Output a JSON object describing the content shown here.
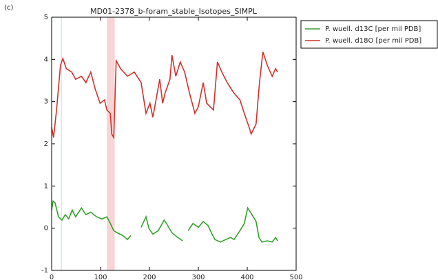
{
  "panel_label": "(c)",
  "chart_data": {
    "type": "line",
    "title": "MD01-2378_b-foram_stable_Isotopes_SIMPL",
    "xlim": [
      0,
      500
    ],
    "xticks": [
      0,
      100,
      200,
      300,
      400,
      500
    ],
    "ylim": [
      -1,
      5
    ],
    "yticks": [
      -1,
      0,
      1,
      2,
      3,
      4,
      5
    ],
    "legend": "outside-right",
    "spans": [
      {
        "xlim": [
          19,
          21
        ],
        "color": "#c6ecec"
      },
      {
        "xlim": [
          113,
          129
        ],
        "color": "#f9d4d4"
      }
    ],
    "series": [
      {
        "name": "P. wuell. d13C [per mil PDB]",
        "color": "#33a02c",
        "x": [
          0,
          3,
          7,
          14,
          21,
          28,
          35,
          42,
          49,
          61,
          70,
          80,
          92,
          103,
          113,
          120,
          127,
          134,
          145,
          155,
          162,
          170,
          183,
          193,
          199,
          207,
          218,
          230,
          235,
          246,
          258,
          268,
          273,
          279,
          289,
          300,
          310,
          320,
          328,
          334,
          345,
          356,
          366,
          373,
          385,
          394,
          401,
          408,
          418,
          424,
          430,
          441,
          451,
          458,
          462
        ],
        "values": [
          0.43,
          0.64,
          0.6,
          0.27,
          0.19,
          0.32,
          0.22,
          0.43,
          0.27,
          0.48,
          0.32,
          0.38,
          0.27,
          0.22,
          0.27,
          0.11,
          -0.06,
          -0.11,
          -0.17,
          -0.27,
          -0.17,
          null,
          0.02,
          0.27,
          -0.01,
          -0.14,
          -0.06,
          0.19,
          0.11,
          -0.11,
          -0.22,
          -0.3,
          null,
          -0.06,
          0.11,
          0.02,
          0.16,
          0.06,
          -0.14,
          -0.27,
          -0.33,
          -0.27,
          -0.22,
          -0.27,
          -0.06,
          0.11,
          0.48,
          0.35,
          0.16,
          -0.22,
          -0.33,
          -0.3,
          -0.33,
          -0.22,
          -0.3
        ]
      },
      {
        "name": "P. wuell. d18O [per mil PDB]",
        "color": "#d0312d",
        "x": [
          0,
          4,
          10,
          18,
          23,
          30,
          41,
          49,
          61,
          70,
          80,
          89,
          99,
          108,
          113,
          120,
          123,
          127,
          132,
          141,
          155,
          169,
          183,
          193,
          201,
          207,
          221,
          227,
          232,
          242,
          246,
          254,
          263,
          272,
          282,
          293,
          300,
          310,
          317,
          331,
          339,
          348,
          359,
          373,
          385,
          394,
          404,
          408,
          418,
          425,
          432,
          441,
          451,
          458,
          462
        ],
        "values": [
          2.39,
          2.15,
          2.8,
          3.86,
          4.02,
          3.78,
          3.7,
          3.53,
          3.6,
          3.45,
          3.7,
          3.3,
          2.96,
          3.04,
          2.8,
          2.72,
          2.23,
          2.15,
          3.97,
          3.78,
          3.6,
          3.7,
          3.45,
          2.72,
          2.96,
          2.63,
          3.53,
          2.96,
          3.2,
          3.53,
          4.1,
          3.6,
          3.94,
          3.7,
          3.2,
          2.72,
          2.88,
          3.45,
          2.96,
          2.8,
          3.94,
          3.7,
          3.45,
          3.2,
          3.04,
          2.72,
          2.39,
          2.23,
          2.47,
          3.45,
          4.18,
          3.86,
          3.6,
          3.78,
          3.7
        ]
      }
    ]
  }
}
